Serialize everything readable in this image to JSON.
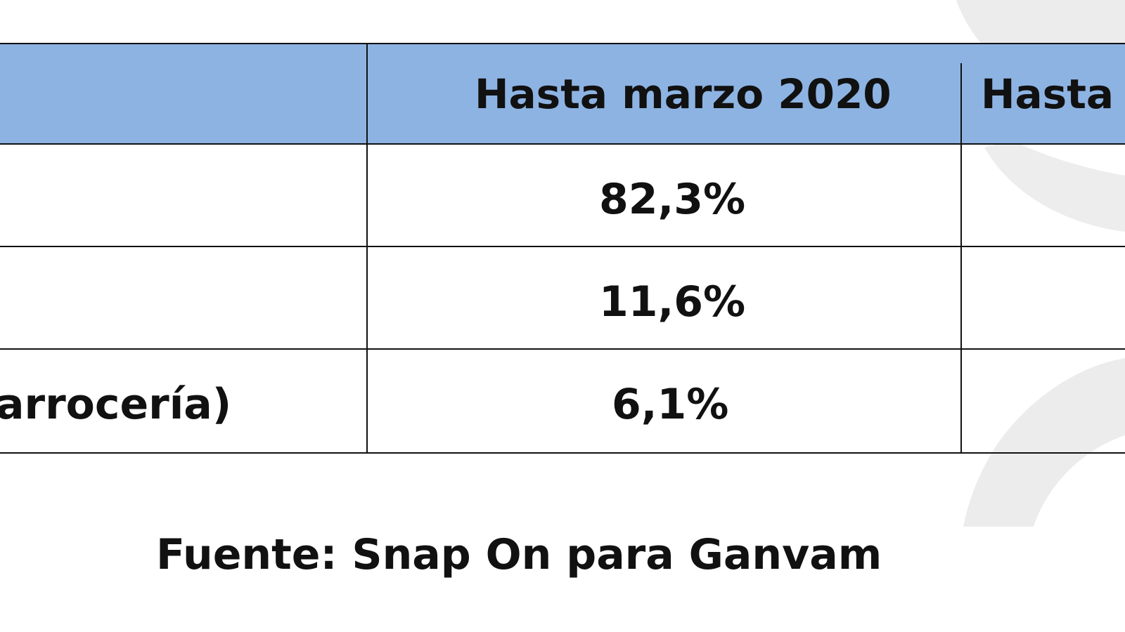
{
  "table": {
    "header_band_color": "#8db3e2",
    "headers": [
      "",
      "Hasta marzo 2020",
      "Hasta"
    ],
    "rows": [
      {
        "label": "",
        "value": "82,3%"
      },
      {
        "label": "",
        "value": "11,6%"
      },
      {
        "label": "arrocería)",
        "value": "6,1%"
      }
    ]
  },
  "source_note": "Fuente: Snap On para Ganvam"
}
